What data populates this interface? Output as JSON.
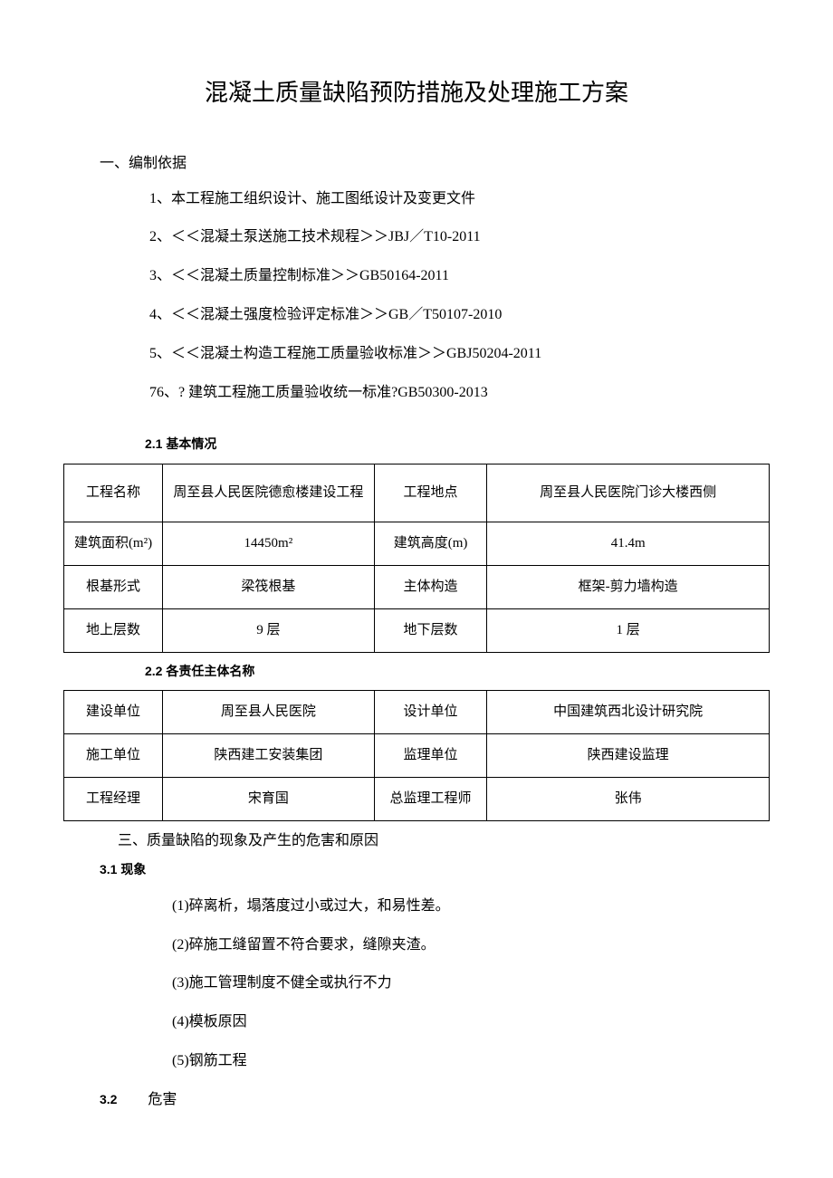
{
  "title": "混凝土质量缺陷预防措施及处理施工方案",
  "section1": {
    "header": "一、编制依据",
    "items": [
      "1、本工程施工组织设计、施工图纸设计及变更文件",
      "2、＜＜混凝土泵送施工技术规程＞＞JBJ／T10-2011",
      "3、＜＜混凝土质量控制标准＞＞GB50164-2011",
      "4、＜＜混凝土强度检验评定标准＞＞GB／T50107-2010",
      "5、＜＜混凝土构造工程施工质量验收标准＞＞GBJ50204-2011",
      "76、? 建筑工程施工质量验收统一标准?GB50300-2013"
    ]
  },
  "table1": {
    "header": "2.1 基本情况",
    "rows": [
      [
        "工程名称",
        "周至县人民医院德愈楼建设工程",
        "工程地点",
        "周至县人民医院门诊大楼西侧"
      ],
      [
        "建筑面积(m²)",
        "14450m²",
        "建筑高度(m)",
        "41.4m"
      ],
      [
        "根基形式",
        "梁筏根基",
        "主体构造",
        "框架-剪力墙构造"
      ],
      [
        "地上层数",
        "9 层",
        "地下层数",
        "1 层"
      ]
    ]
  },
  "table2": {
    "header": "2.2 各责任主体名称",
    "rows": [
      [
        "建设单位",
        "周至县人民医院",
        "设计单位",
        "中国建筑西北设计研究院"
      ],
      [
        "施工单位",
        "陕西建工安装集团",
        "监理单位",
        "陕西建设监理"
      ],
      [
        "工程经理",
        "宋育国",
        "总监理工程师",
        "张伟"
      ]
    ]
  },
  "section3": {
    "header": "三、质量缺陷的现象及产生的危害和原因",
    "sub31": "3.1 现象",
    "items": [
      "(1)碎离析，塌落度过小或过大，和易性差。",
      "(2)碎施工缝留置不符合要求，缝隙夹渣。",
      "(3)施工管理制度不健全或执行不力",
      "(4)模板原因",
      "(5)钢筋工程"
    ],
    "sub32": "3.2",
    "sub32_text": "危害"
  }
}
